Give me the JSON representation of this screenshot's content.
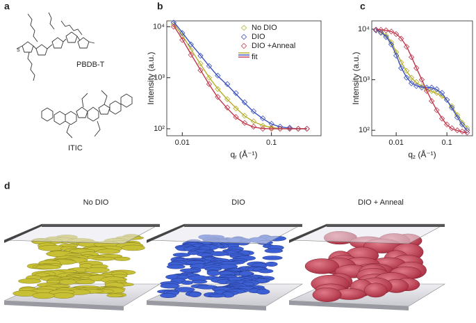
{
  "panel_labels": [
    "a",
    "b",
    "c",
    "d"
  ],
  "molecules": [
    "PBDB-T",
    "ITIC"
  ],
  "chart_data": [
    {
      "type": "scatter",
      "log_x": true,
      "log_y": true,
      "xlim": [
        0.0067,
        0.36
      ],
      "ylim": [
        73,
        13000
      ],
      "xticks": [
        0.01,
        0.1
      ],
      "yticks": [
        {
          "value": 100,
          "label": "10²"
        },
        {
          "value": 1000,
          "label": "10³"
        },
        {
          "value": 10000,
          "label": "10⁴"
        }
      ],
      "ylabel": "Intensity (a.u.)",
      "xlabel": {
        "symbol": "q",
        "sub": "r",
        "unit": " (Å⁻¹)"
      },
      "legend": "upper right",
      "fit_label": "fit",
      "x": [
        0.008,
        0.01,
        0.0125,
        0.016,
        0.02,
        0.025,
        0.032,
        0.04,
        0.05,
        0.063,
        0.08,
        0.1,
        0.125,
        0.16,
        0.2,
        0.25
      ],
      "series": [
        {
          "name": "No DIO",
          "color": "#b5ae2a",
          "values": [
            11000,
            6500,
            3500,
            1900,
            1000,
            600,
            380,
            250,
            180,
            140,
            115,
            105,
            100,
            100,
            100,
            100
          ],
          "fit": [
            11500,
            6800,
            3600,
            1850,
            1020,
            610,
            375,
            255,
            178,
            138,
            116,
            106,
            101,
            100,
            100,
            100
          ]
        },
        {
          "name": "DIO",
          "color": "#3a4fc0",
          "values": [
            12000,
            7500,
            4500,
            2700,
            1700,
            1100,
            750,
            500,
            330,
            220,
            160,
            125,
            110,
            105,
            100,
            100
          ],
          "fit": [
            12500,
            7700,
            4600,
            2750,
            1700,
            1080,
            720,
            480,
            320,
            215,
            158,
            124,
            109,
            103,
            100,
            100
          ]
        },
        {
          "name": "DIO +Anneal",
          "color": "#c0364a",
          "values": [
            10000,
            5500,
            2800,
            1400,
            750,
            420,
            260,
            170,
            130,
            110,
            100,
            100,
            100,
            100,
            100,
            100
          ],
          "fit": [
            10500,
            5700,
            2900,
            1420,
            740,
            410,
            250,
            168,
            128,
            108,
            101,
            100,
            100,
            100,
            100,
            100
          ]
        }
      ]
    },
    {
      "type": "scatter",
      "log_x": true,
      "log_y": true,
      "xlim": [
        0.0033,
        0.32
      ],
      "ylim": [
        78,
        14600
      ],
      "xticks": [
        0.01,
        0.1
      ],
      "yticks": [
        {
          "value": 100,
          "label": "10²"
        },
        {
          "value": 1000,
          "label": "10³"
        },
        {
          "value": 10000,
          "label": "10⁴"
        }
      ],
      "ylabel": "Intensity (a.u.)",
      "xlabel": {
        "symbol": "q",
        "sub": "z",
        "unit": " (Å⁻¹)"
      },
      "x": [
        0.004,
        0.005,
        0.0063,
        0.008,
        0.01,
        0.0125,
        0.016,
        0.02,
        0.025,
        0.032,
        0.04,
        0.05,
        0.063,
        0.08,
        0.1,
        0.125,
        0.16,
        0.2,
        0.25
      ],
      "series": [
        {
          "color": "#b5ae2a",
          "values": [
            9500,
            8800,
            7500,
            5500,
            3500,
            2200,
            1500,
            1100,
            900,
            750,
            650,
            600,
            550,
            480,
            400,
            300,
            200,
            140,
            110
          ],
          "fit": [
            9600,
            8900,
            7600,
            5600,
            3600,
            2250,
            1480,
            1080,
            880,
            740,
            650,
            590,
            540,
            470,
            390,
            295,
            205,
            145,
            112
          ]
        },
        {
          "color": "#3a4fc0",
          "values": [
            9500,
            8500,
            7000,
            5000,
            3000,
            1700,
            1100,
            850,
            750,
            700,
            700,
            700,
            650,
            550,
            400,
            280,
            180,
            130,
            100
          ],
          "fit": [
            9700,
            8700,
            7200,
            5100,
            3100,
            1750,
            1120,
            860,
            760,
            710,
            705,
            700,
            640,
            540,
            395,
            275,
            185,
            128,
            100
          ]
        },
        {
          "color": "#c0364a",
          "values": [
            9800,
            9700,
            9500,
            9000,
            8000,
            6500,
            4500,
            2800,
            1700,
            1000,
            600,
            380,
            250,
            170,
            130,
            110,
            100,
            95,
            90
          ],
          "fit": [
            9900,
            9750,
            9500,
            9000,
            8100,
            6600,
            4600,
            2850,
            1720,
            1000,
            610,
            385,
            250,
            172,
            128,
            108,
            99,
            93,
            88
          ]
        }
      ]
    }
  ],
  "panel_d": {
    "titles": [
      "No DIO",
      "DIO",
      "DIO + Anneal"
    ]
  }
}
